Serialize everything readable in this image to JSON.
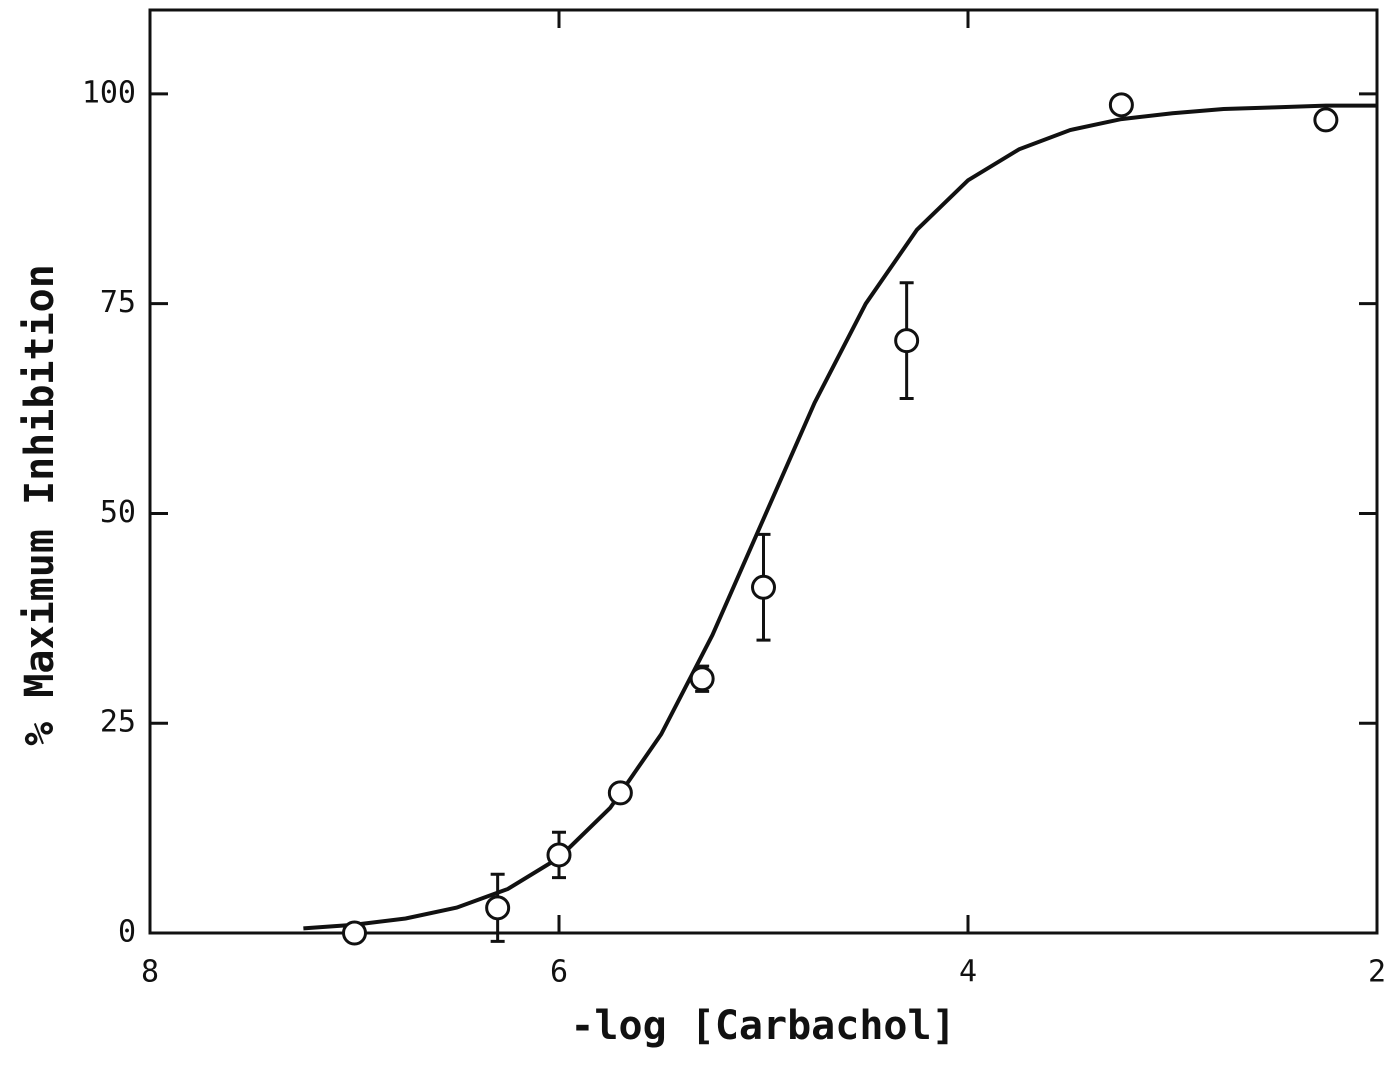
{
  "chart_data": {
    "type": "scatter",
    "xlabel": "-log [Carbachol]",
    "ylabel": "% Maximum Inhibition",
    "xlim": [
      8,
      2
    ],
    "xticks": [
      8,
      6,
      4,
      2
    ],
    "ylim": [
      0,
      110
    ],
    "yticks": [
      0,
      25,
      50,
      75,
      100
    ],
    "color": "#111111",
    "points": {
      "x": [
        7.0,
        6.3,
        6.0,
        5.7,
        5.3,
        5.0,
        4.3,
        3.25,
        2.25
      ],
      "y": [
        0,
        3.0,
        9.3,
        16.7,
        30.3,
        41.2,
        70.6,
        98.7,
        96.9
      ],
      "errors": [
        null,
        4.0,
        2.7,
        null,
        1.5,
        6.3,
        6.9,
        null,
        null
      ]
    },
    "curve": {
      "x": [
        7.25,
        7.0,
        6.75,
        6.5,
        6.25,
        6.0,
        5.75,
        5.5,
        5.25,
        5.0,
        4.75,
        4.5,
        4.25,
        4.0,
        3.75,
        3.5,
        3.25,
        3.0,
        2.75,
        2.5,
        2.25,
        2.0
      ],
      "y": [
        0.55,
        0.98,
        1.73,
        3.03,
        5.25,
        8.97,
        14.9,
        23.7,
        35.5,
        49.35,
        63.2,
        75.0,
        83.8,
        89.7,
        93.4,
        95.7,
        97.0,
        97.7,
        98.2,
        98.4,
        98.6,
        98.6
      ]
    }
  }
}
